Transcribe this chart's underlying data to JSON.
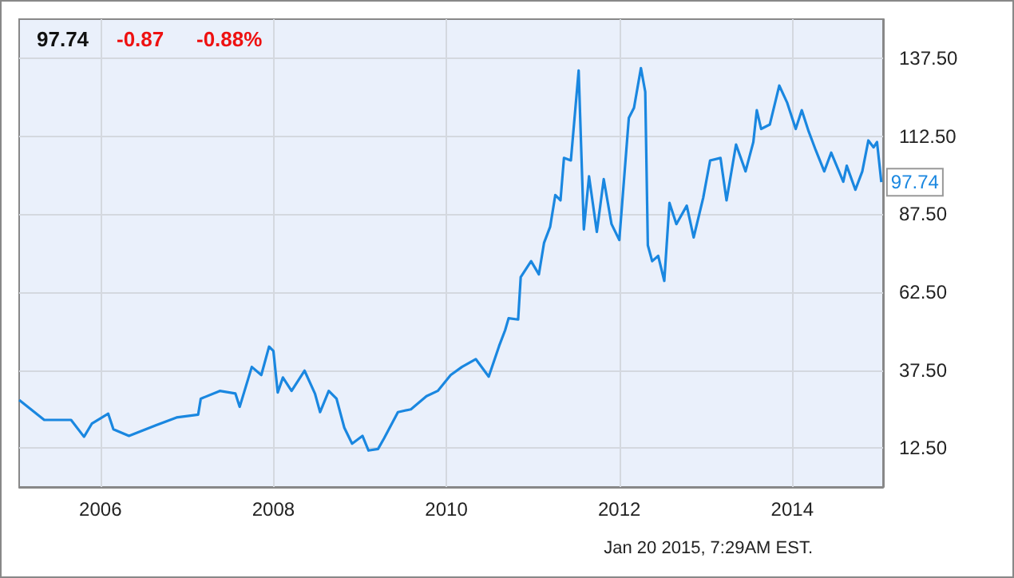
{
  "chart_data": {
    "type": "line",
    "x": [
      2005.06,
      2005.35,
      2005.66,
      2005.81,
      2005.9,
      2006.09,
      2006.15,
      2006.33,
      2006.64,
      2006.88,
      2007.13,
      2007.16,
      2007.38,
      2007.56,
      2007.61,
      2007.75,
      2007.86,
      2007.95,
      2008.0,
      2008.05,
      2008.11,
      2008.21,
      2008.36,
      2008.48,
      2008.54,
      2008.64,
      2008.73,
      2008.82,
      2008.91,
      2009.03,
      2009.1,
      2009.21,
      2009.28,
      2009.44,
      2009.59,
      2009.77,
      2009.9,
      2010.05,
      2010.18,
      2010.34,
      2010.49,
      2010.61,
      2010.68,
      2010.72,
      2010.83,
      2010.86,
      2010.98,
      2011.07,
      2011.13,
      2011.2,
      2011.26,
      2011.32,
      2011.36,
      2011.44,
      2011.53,
      2011.59,
      2011.65,
      2011.74,
      2011.82,
      2011.91,
      2012.0,
      2012.11,
      2012.17,
      2012.25,
      2012.3,
      2012.33,
      2012.38,
      2012.45,
      2012.52,
      2012.58,
      2012.66,
      2012.78,
      2012.86,
      2012.97,
      2013.05,
      2013.17,
      2013.24,
      2013.35,
      2013.46,
      2013.55,
      2013.59,
      2013.64,
      2013.74,
      2013.85,
      2013.94,
      2014.04,
      2014.11,
      2014.19,
      2014.27,
      2014.37,
      2014.45,
      2014.59,
      2014.63,
      2014.73,
      2014.81,
      2014.88,
      2014.94,
      2014.98,
      2015.03
    ],
    "series": [
      {
        "color": "#1a87e0",
        "values": [
          27.9,
          21.5,
          21.5,
          16.1,
          20.3,
          23.5,
          18.5,
          16.4,
          19.8,
          22.3,
          23.2,
          28.3,
          30.8,
          30,
          25.7,
          38.5,
          35.9,
          45,
          43.6,
          30.3,
          35.1,
          30.8,
          37.3,
          30,
          24,
          30.8,
          28.3,
          19,
          13.9,
          16.4,
          11.7,
          12.2,
          15.6,
          24,
          24.9,
          29.1,
          30.8,
          35.9,
          38.5,
          41,
          35.4,
          45.2,
          50.3,
          54.1,
          53.7,
          67.3,
          72.4,
          68.2,
          78.3,
          83.4,
          93.6,
          91.9,
          105.5,
          104.7,
          133.5,
          82.6,
          99.6,
          81.8,
          98.7,
          84.3,
          79.2,
          118.3,
          121.6,
          134.3,
          126.7,
          77.5,
          72.4,
          74.1,
          66.1,
          91.1,
          84.3,
          90.2,
          80,
          92.7,
          104.7,
          105.5,
          91.9,
          109.8,
          101.2,
          110.6,
          120.8,
          114.8,
          116.2,
          128.7,
          123.3,
          114.8,
          120.8,
          114,
          108.1,
          101.2,
          107.2,
          97.9,
          103,
          95.3,
          101.2,
          111.1,
          108.9,
          110.6,
          97.74
        ]
      }
    ],
    "xlim": [
      2005.06,
      2015.05
    ],
    "xticks": [
      2006,
      2008,
      2010,
      2012,
      2014
    ],
    "ylim": [
      0,
      150
    ],
    "yticks": [
      {
        "value": 12.5,
        "label": "12.50"
      },
      {
        "value": 37.5,
        "label": "37.50"
      },
      {
        "value": 62.5,
        "label": "62.50"
      },
      {
        "value": 87.5,
        "label": "87.50"
      },
      {
        "value": 112.5,
        "label": "112.50"
      },
      {
        "value": 137.5,
        "label": "137.50"
      }
    ],
    "grid": true,
    "marker": "none",
    "line_style": "solid",
    "annotations": [
      "97.74",
      "-0.87",
      "-0.88%",
      {
        "text": "97.74",
        "x": 2015.03,
        "y": 97.74
      },
      "Jan 20 2015, 7:29AM EST."
    ]
  }
}
